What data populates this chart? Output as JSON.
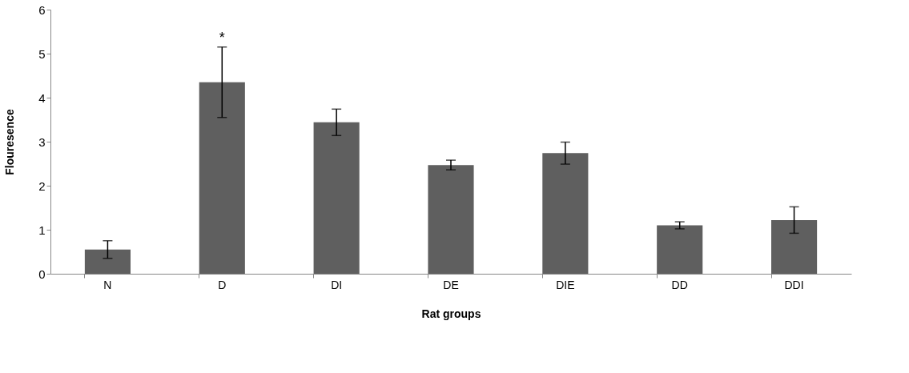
{
  "chart_data": {
    "type": "bar",
    "xlabel": "Rat groups",
    "ylabel": "Flouresence",
    "categories": [
      "N",
      "D",
      "DI",
      "DE",
      "DIE",
      "DD",
      "DDI"
    ],
    "values": [
      0.55,
      4.35,
      3.44,
      2.47,
      2.74,
      1.1,
      1.22
    ],
    "errors": [
      0.2,
      0.8,
      0.3,
      0.11,
      0.25,
      0.08,
      0.3
    ],
    "color": "#5f5f5f",
    "ylim": [
      0,
      6
    ],
    "yticks": [
      0,
      1,
      2,
      3,
      4,
      5,
      6
    ],
    "grid": false,
    "annotations": [
      "*"
    ]
  }
}
